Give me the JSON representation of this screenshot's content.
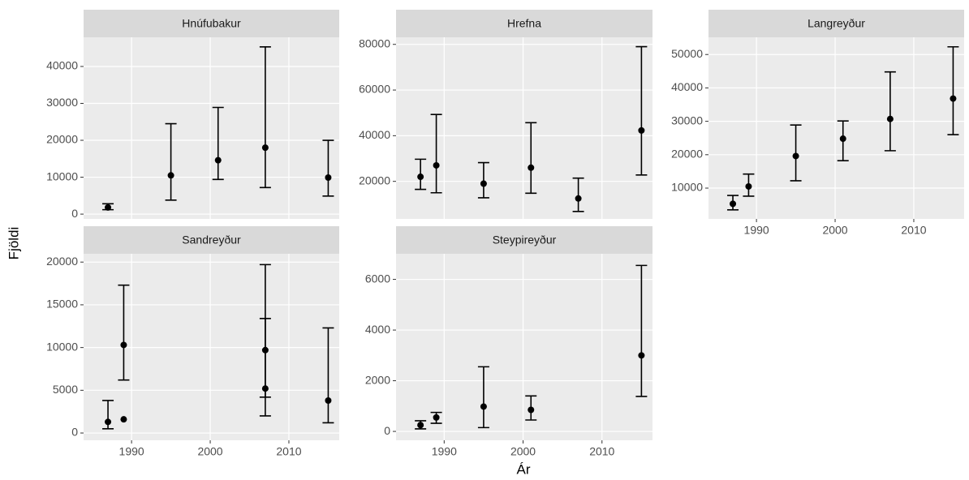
{
  "chart_data": [
    {
      "type": "errorbar",
      "title": "Hnúfubakur",
      "x": [
        1987,
        1995,
        2001,
        2007,
        2015
      ],
      "values": [
        1800,
        10500,
        14600,
        18000,
        9900
      ],
      "lower": [
        1200,
        3800,
        9400,
        7200,
        4900
      ],
      "upper": [
        2800,
        24500,
        28900,
        45300,
        20000
      ],
      "xlim": [
        1983.9,
        2016.4
      ],
      "xticks": [
        1990,
        2000,
        2010
      ],
      "ylim": [
        -1300,
        47900
      ],
      "yticks": [
        0,
        10000,
        20000,
        30000,
        40000
      ]
    },
    {
      "type": "errorbar",
      "title": "Hrefna",
      "x": [
        1987,
        1989,
        1995,
        2001,
        2007,
        2015
      ],
      "values": [
        22000,
        27000,
        19000,
        26000,
        12500,
        42300
      ],
      "lower": [
        16500,
        15000,
        12800,
        14800,
        6800,
        22800
      ],
      "upper": [
        29700,
        49300,
        28200,
        45700,
        21400,
        79000
      ],
      "xlim": [
        1983.9,
        2016.4
      ],
      "xticks": [
        1990,
        2000,
        2010
      ],
      "ylim": [
        3550,
        83100
      ],
      "yticks": [
        20000,
        40000,
        60000,
        80000
      ]
    },
    {
      "type": "errorbar",
      "title": "Langreyður",
      "x": [
        1987,
        1989,
        1995,
        2001,
        2007,
        2015
      ],
      "values": [
        5300,
        10500,
        19600,
        24800,
        30700,
        36800
      ],
      "lower": [
        3500,
        7600,
        12200,
        18200,
        21200,
        26000
      ],
      "upper": [
        7800,
        14200,
        28900,
        30100,
        44800,
        52300
      ],
      "xlim": [
        1983.9,
        2016.4
      ],
      "xticks": [
        1990,
        2000,
        2010
      ],
      "ylim": [
        780,
        55150
      ],
      "yticks": [
        10000,
        20000,
        30000,
        40000,
        50000
      ]
    },
    {
      "type": "errorbar",
      "title": "Sandreyður",
      "x": [
        1987,
        1989,
        1989,
        2007,
        2007,
        2015
      ],
      "values": [
        1300,
        1600,
        10300,
        9700,
        5200,
        3800
      ],
      "lower": [
        500,
        null,
        6200,
        4200,
        2000,
        1200
      ],
      "upper": [
        3800,
        null,
        17300,
        19700,
        13400,
        12300
      ],
      "xlim": [
        1983.9,
        2016.4
      ],
      "xticks": [
        1990,
        2000,
        2010
      ],
      "ylim": [
        -850,
        20970
      ],
      "yticks": [
        0,
        5000,
        10000,
        15000,
        20000
      ]
    },
    {
      "type": "errorbar",
      "title": "Steypireyður",
      "x": [
        1987,
        1989,
        1995,
        2001,
        2015
      ],
      "values": [
        250,
        550,
        980,
        850,
        3000
      ],
      "lower": [
        100,
        320,
        150,
        450,
        1380
      ],
      "upper": [
        420,
        750,
        2550,
        1400,
        6550
      ],
      "xlim": [
        1983.9,
        2016.4
      ],
      "xticks": [
        1990,
        2000,
        2010
      ],
      "ylim": [
        -350,
        7010
      ],
      "yticks": [
        0,
        2000,
        4000,
        6000
      ]
    }
  ],
  "x_label": "Ár",
  "y_label": "Fjöldi"
}
